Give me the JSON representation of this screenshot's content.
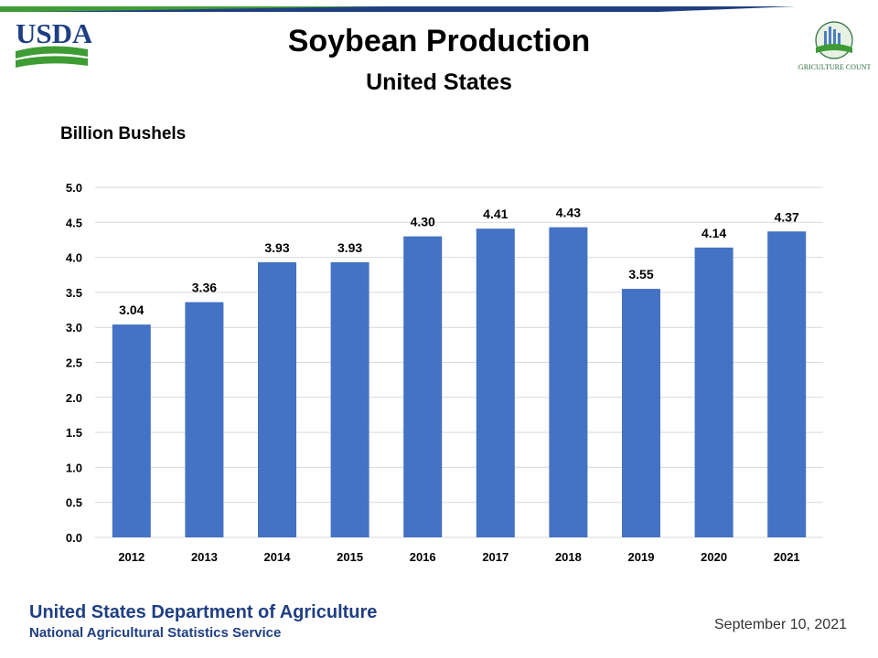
{
  "header": {
    "usda_logo_text": "USDA",
    "ag_counts_logo_text": "AGRICULTURE COUNTS"
  },
  "chart_data": {
    "type": "bar",
    "title": "Soybean Production",
    "subtitle": "United States",
    "ylabel": "Billion Bushels",
    "xlabel": "",
    "categories": [
      "2012",
      "2013",
      "2014",
      "2015",
      "2016",
      "2017",
      "2018",
      "2019",
      "2020",
      "2021"
    ],
    "values": [
      3.04,
      3.36,
      3.93,
      3.93,
      4.3,
      4.41,
      4.43,
      3.55,
      4.14,
      4.37
    ],
    "data_labels": [
      "3.04",
      "3.36",
      "3.93",
      "3.93",
      "4.30",
      "4.41",
      "4.43",
      "3.55",
      "4.14",
      "4.37"
    ],
    "ylim": [
      0,
      5
    ],
    "yticks": [
      "0.0",
      "0.5",
      "1.0",
      "1.5",
      "2.0",
      "2.5",
      "3.0",
      "3.5",
      "4.0",
      "4.5",
      "5.0"
    ],
    "grid": true,
    "legend": "none",
    "bar_color": "#4472C4",
    "grid_color": "#D9D9D9"
  },
  "footer": {
    "org": "United States Department of Agriculture",
    "suborg": "National Agricultural Statistics Service",
    "date": "September 10, 2021"
  },
  "colors": {
    "top_bar_blue": "#1F3F82",
    "top_bar_green": "#3F9C35",
    "usda_blue": "#1F3F82",
    "usda_green": "#3F9C35",
    "footer_text": "#1F3F82"
  }
}
